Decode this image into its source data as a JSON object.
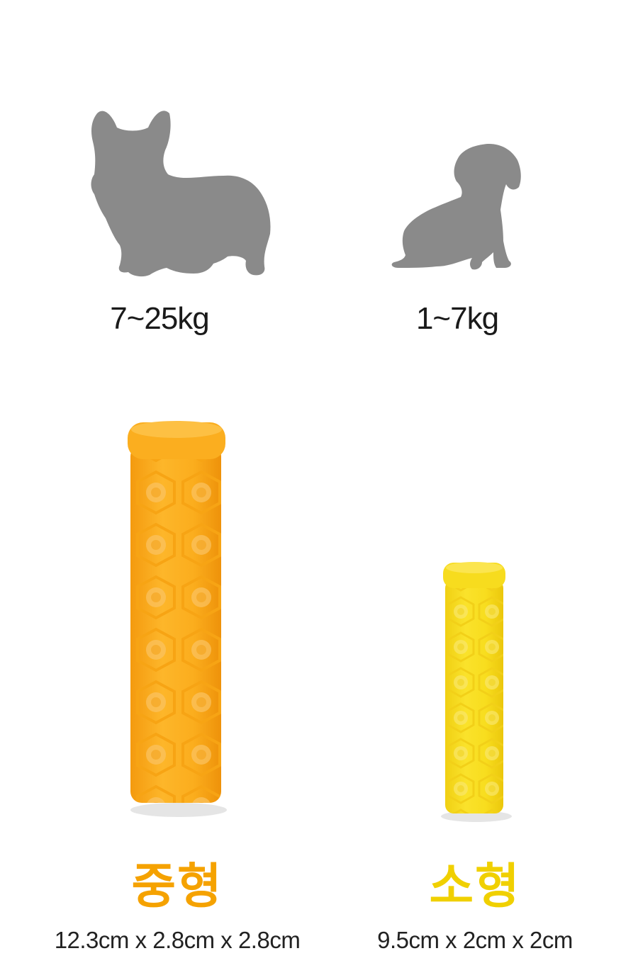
{
  "colors": {
    "silhouette": "#8a8a8a",
    "medium_accent": "#f5a200",
    "small_accent": "#f0d000",
    "medium_toy": "#fbae1f",
    "small_toy": "#f7dc1e"
  },
  "products": [
    {
      "dog_icon": "corgi-silhouette-icon",
      "weight": "7~25kg",
      "size_name": "중형",
      "dimensions": "12.3cm x 2.8cm x 2.8cm"
    },
    {
      "dog_icon": "dachshund-silhouette-icon",
      "weight": "1~7kg",
      "size_name": "소형",
      "dimensions": "9.5cm x 2cm x 2cm"
    }
  ]
}
